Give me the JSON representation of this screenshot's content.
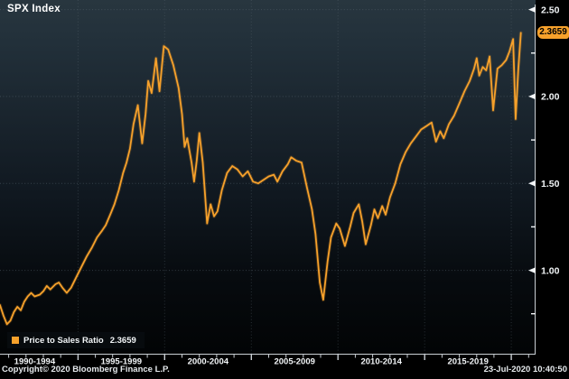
{
  "window": {
    "title": "SPX Index"
  },
  "colors": {
    "accent": "#F7A12B",
    "tag_background": "#F7A12B",
    "tag_text": "#000000",
    "axis_text": "#F2F5F7",
    "axis_line": "#C9CED3",
    "grid": "#55626B",
    "background_top": "#28363F",
    "background_bottom": "#020405"
  },
  "price_tag": {
    "value": "2.3659"
  },
  "legend": {
    "swatch_icon": "orange-square",
    "label": "Price to Sales Ratio",
    "value": "2.3659"
  },
  "footer": {
    "copyright": "Copyright© 2020 Bloomberg Finance L.P.",
    "timestamp": "23-Jul-2020 10:40:50"
  },
  "chart_data": {
    "type": "line",
    "title": "SPX Index",
    "xlabel": "",
    "ylabel": "Price to Sales Ratio",
    "x_range": [
      1990.5,
      2021.4
    ],
    "ylim": [
      0.515,
      2.555
    ],
    "y_ticks": [
      2.5,
      2.0,
      1.5,
      1.0
    ],
    "y_tick_labels": [
      "2.50",
      "2.00",
      "1.50",
      "1.00"
    ],
    "y_minor_ticks": [
      2.25,
      1.75,
      1.25,
      0.75
    ],
    "x_gridline_years": [
      1995,
      2000,
      2005,
      2010,
      2015,
      2020
    ],
    "x_sections": [
      {
        "label": "1990-1994",
        "center_year": 1992.5
      },
      {
        "label": "1995-1999",
        "center_year": 1997.5
      },
      {
        "label": "2000-2004",
        "center_year": 2002.5
      },
      {
        "label": "2005-2009",
        "center_year": 2007.5
      },
      {
        "label": "2010-2014",
        "center_year": 2012.5
      },
      {
        "label": "2015-2019",
        "center_year": 2017.5
      }
    ],
    "grid": "dotted",
    "legend_position": "bottom-left",
    "series": [
      {
        "name": "Price to Sales Ratio",
        "color": "#F7A12B",
        "last_value": 2.3659,
        "points": [
          [
            1990.5,
            0.8
          ],
          [
            1990.7,
            0.74
          ],
          [
            1990.9,
            0.69
          ],
          [
            1991.1,
            0.71
          ],
          [
            1991.3,
            0.76
          ],
          [
            1991.5,
            0.79
          ],
          [
            1991.7,
            0.77
          ],
          [
            1991.9,
            0.82
          ],
          [
            1992.1,
            0.85
          ],
          [
            1992.3,
            0.87
          ],
          [
            1992.5,
            0.85
          ],
          [
            1992.8,
            0.86
          ],
          [
            1993.0,
            0.88
          ],
          [
            1993.2,
            0.91
          ],
          [
            1993.4,
            0.89
          ],
          [
            1993.7,
            0.92
          ],
          [
            1993.9,
            0.93
          ],
          [
            1994.1,
            0.9
          ],
          [
            1994.35,
            0.87
          ],
          [
            1994.6,
            0.9
          ],
          [
            1994.9,
            0.96
          ],
          [
            1995.2,
            1.02
          ],
          [
            1995.5,
            1.08
          ],
          [
            1995.8,
            1.13
          ],
          [
            1996.1,
            1.19
          ],
          [
            1996.4,
            1.23
          ],
          [
            1996.6,
            1.26
          ],
          [
            1996.9,
            1.33
          ],
          [
            1997.1,
            1.38
          ],
          [
            1997.35,
            1.46
          ],
          [
            1997.6,
            1.56
          ],
          [
            1997.8,
            1.62
          ],
          [
            1998.0,
            1.7
          ],
          [
            1998.2,
            1.84
          ],
          [
            1998.45,
            1.95
          ],
          [
            1998.7,
            1.73
          ],
          [
            1998.9,
            1.9
          ],
          [
            1999.05,
            2.09
          ],
          [
            1999.25,
            2.02
          ],
          [
            1999.5,
            2.22
          ],
          [
            1999.7,
            2.03
          ],
          [
            1999.95,
            2.29
          ],
          [
            2000.2,
            2.27
          ],
          [
            2000.5,
            2.18
          ],
          [
            2000.8,
            2.05
          ],
          [
            2001.0,
            1.9
          ],
          [
            2001.15,
            1.71
          ],
          [
            2001.3,
            1.76
          ],
          [
            2001.55,
            1.62
          ],
          [
            2001.7,
            1.51
          ],
          [
            2001.85,
            1.63
          ],
          [
            2002.0,
            1.79
          ],
          [
            2002.2,
            1.62
          ],
          [
            2002.45,
            1.27
          ],
          [
            2002.65,
            1.38
          ],
          [
            2002.85,
            1.31
          ],
          [
            2003.05,
            1.34
          ],
          [
            2003.3,
            1.46
          ],
          [
            2003.6,
            1.56
          ],
          [
            2003.9,
            1.6
          ],
          [
            2004.2,
            1.58
          ],
          [
            2004.5,
            1.54
          ],
          [
            2004.8,
            1.57
          ],
          [
            2005.1,
            1.51
          ],
          [
            2005.4,
            1.5
          ],
          [
            2005.7,
            1.52
          ],
          [
            2006.0,
            1.54
          ],
          [
            2006.3,
            1.55
          ],
          [
            2006.5,
            1.51
          ],
          [
            2006.8,
            1.57
          ],
          [
            2007.1,
            1.61
          ],
          [
            2007.3,
            1.65
          ],
          [
            2007.6,
            1.63
          ],
          [
            2007.9,
            1.62
          ],
          [
            2008.2,
            1.48
          ],
          [
            2008.5,
            1.35
          ],
          [
            2008.7,
            1.21
          ],
          [
            2008.95,
            0.93
          ],
          [
            2009.15,
            0.83
          ],
          [
            2009.4,
            1.05
          ],
          [
            2009.6,
            1.19
          ],
          [
            2009.9,
            1.27
          ],
          [
            2010.1,
            1.24
          ],
          [
            2010.4,
            1.14
          ],
          [
            2010.7,
            1.25
          ],
          [
            2010.9,
            1.33
          ],
          [
            2011.2,
            1.38
          ],
          [
            2011.4,
            1.28
          ],
          [
            2011.6,
            1.15
          ],
          [
            2011.9,
            1.26
          ],
          [
            2012.1,
            1.35
          ],
          [
            2012.3,
            1.3
          ],
          [
            2012.55,
            1.37
          ],
          [
            2012.75,
            1.32
          ],
          [
            2013.0,
            1.42
          ],
          [
            2013.3,
            1.5
          ],
          [
            2013.6,
            1.61
          ],
          [
            2013.9,
            1.68
          ],
          [
            2014.2,
            1.73
          ],
          [
            2014.5,
            1.77
          ],
          [
            2014.8,
            1.81
          ],
          [
            2015.1,
            1.83
          ],
          [
            2015.4,
            1.85
          ],
          [
            2015.65,
            1.74
          ],
          [
            2015.9,
            1.8
          ],
          [
            2016.1,
            1.76
          ],
          [
            2016.4,
            1.84
          ],
          [
            2016.7,
            1.89
          ],
          [
            2017.0,
            1.96
          ],
          [
            2017.3,
            2.03
          ],
          [
            2017.6,
            2.09
          ],
          [
            2017.85,
            2.16
          ],
          [
            2018.0,
            2.22
          ],
          [
            2018.15,
            2.12
          ],
          [
            2018.35,
            2.17
          ],
          [
            2018.55,
            2.15
          ],
          [
            2018.75,
            2.23
          ],
          [
            2018.95,
            1.92
          ],
          [
            2019.2,
            2.16
          ],
          [
            2019.45,
            2.18
          ],
          [
            2019.7,
            2.21
          ],
          [
            2019.9,
            2.26
          ],
          [
            2020.1,
            2.33
          ],
          [
            2020.25,
            1.87
          ],
          [
            2020.4,
            2.15
          ],
          [
            2020.55,
            2.3659
          ]
        ]
      }
    ]
  }
}
